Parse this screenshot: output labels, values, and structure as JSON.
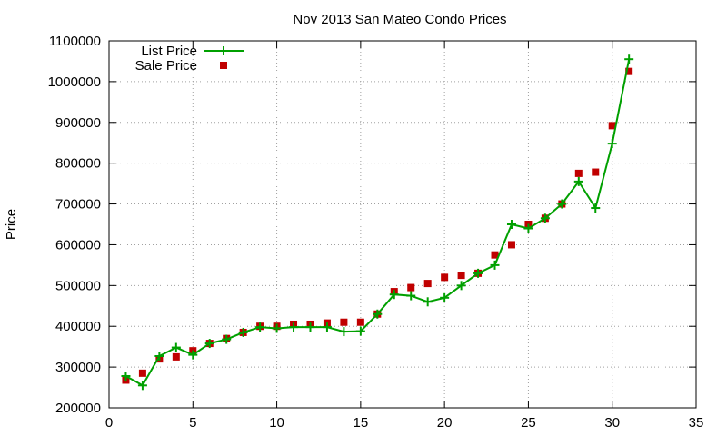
{
  "chart_data": {
    "type": "line",
    "title": "Nov 2013 San Mateo Condo Prices",
    "xlabel": "",
    "ylabel": "Price",
    "xlim": [
      0,
      35
    ],
    "ylim": [
      200000,
      1100000
    ],
    "x_ticks": [
      0,
      5,
      10,
      15,
      20,
      25,
      30,
      35
    ],
    "y_ticks": [
      200000,
      300000,
      400000,
      500000,
      600000,
      700000,
      800000,
      900000,
      1000000,
      1100000
    ],
    "grid": true,
    "legend_position": "top-left",
    "x": [
      1,
      2,
      3,
      4,
      5,
      6,
      7,
      8,
      9,
      10,
      11,
      12,
      13,
      14,
      15,
      16,
      17,
      18,
      19,
      20,
      21,
      22,
      23,
      24,
      25,
      26,
      27,
      28,
      29,
      30,
      31
    ],
    "series": [
      {
        "name": "List Price",
        "style": "line-with-plus-markers",
        "color": "#00a000",
        "values": [
          278000,
          255000,
          327000,
          348000,
          330000,
          358000,
          368000,
          385000,
          398000,
          395000,
          398000,
          398000,
          398000,
          387000,
          388000,
          430000,
          478000,
          475000,
          460000,
          470000,
          500000,
          530000,
          550000,
          650000,
          640000,
          665000,
          700000,
          755000,
          690000,
          848000,
          1055000
        ]
      },
      {
        "name": "Sale Price",
        "style": "square-markers",
        "color": "#c00000",
        "values": [
          268000,
          285000,
          320000,
          325000,
          340000,
          358000,
          370000,
          385000,
          400000,
          400000,
          405000,
          405000,
          408000,
          410000,
          410000,
          430000,
          485000,
          495000,
          505000,
          520000,
          525000,
          530000,
          575000,
          600000,
          650000,
          665000,
          700000,
          775000,
          778000,
          892000,
          1025000
        ]
      }
    ]
  }
}
